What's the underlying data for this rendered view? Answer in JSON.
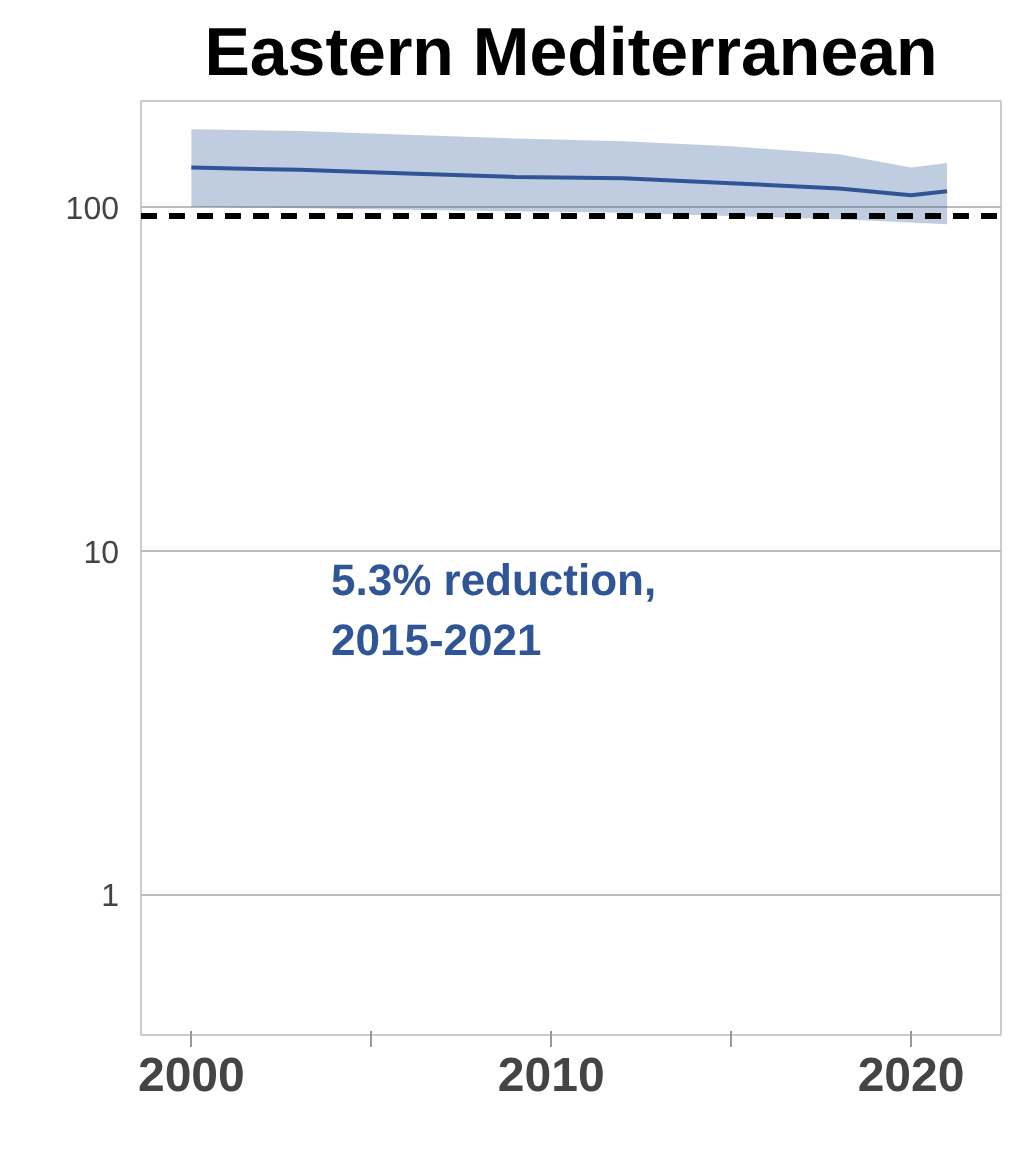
{
  "chart_data": {
    "type": "line",
    "title": "Eastern Mediterranean",
    "log": "y",
    "x": [
      2000,
      2003,
      2006,
      2009,
      2012,
      2015,
      2018,
      2020,
      2021
    ],
    "series": [
      {
        "color": "#2f5597",
        "values": [
          130,
          128,
          125,
          122,
          121,
          117,
          113,
          108,
          111
        ],
        "lower": [
          100,
          99,
          98,
          97,
          96,
          94,
          92,
          90,
          89
        ],
        "upper": [
          168,
          166,
          162,
          158,
          155,
          150,
          142,
          130,
          134
        ]
      }
    ],
    "xlim": [
      1998.6,
      2022.5
    ],
    "ylim": [
      0.39,
      203
    ],
    "xticks": [
      2000,
      {
        "value": 2005,
        "label": null
      },
      2010,
      {
        "value": 2015,
        "label": null
      },
      2020
    ],
    "yticks": [
      1,
      10,
      100
    ],
    "grid": "y",
    "ref_lines": [
      {
        "axis": "y",
        "value": 94,
        "label": null,
        "color": "#000000",
        "line_style": "dashed"
      }
    ],
    "annotations": [
      "5.3% reduction,\n2015-2021"
    ]
  }
}
